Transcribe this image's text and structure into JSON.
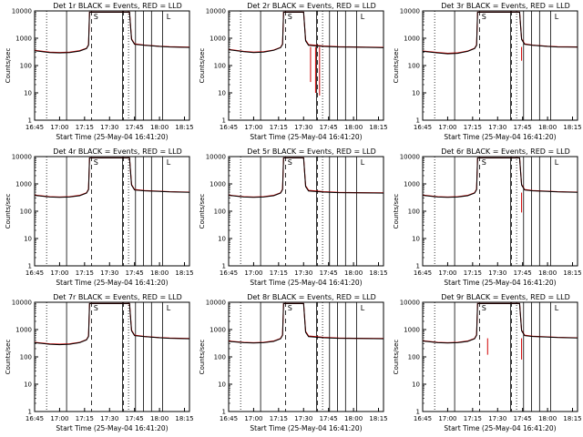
{
  "chart_data": [
    {
      "type": "line",
      "title": "Det 1r BLACK = Events, RED = LLD",
      "xlabel": "Start Time (25-May-04 16:41:20)",
      "ylabel": "Counts/sec",
      "yscale": "log",
      "ylim": [
        1,
        10000
      ],
      "xlim": [
        16.75,
        18.3
      ],
      "xtick_labels": [
        "16:45",
        "17:00",
        "17:15",
        "17:30",
        "17:45",
        "18:00",
        "18:15"
      ],
      "ytick_labels": [
        "1",
        "10",
        "100",
        "1000",
        "10000"
      ],
      "annotations": [
        "S",
        "L"
      ],
      "dips": [],
      "series": [
        {
          "color": "#000000",
          "x": [
            16.75,
            16.9,
            17.0,
            17.1,
            17.2,
            17.27,
            17.29,
            17.3,
            17.7,
            17.72,
            17.75,
            17.85,
            18.0,
            18.1,
            18.3
          ],
          "values": [
            350,
            300,
            290,
            300,
            340,
            420,
            560,
            9000,
            9000,
            900,
            600,
            550,
            500,
            480,
            460
          ]
        },
        {
          "color": "#d00000",
          "x": [
            16.75,
            16.9,
            17.0,
            17.1,
            17.2,
            17.27,
            17.29,
            17.3,
            17.7,
            17.72,
            17.75,
            17.85,
            18.0,
            18.1,
            18.3
          ],
          "values": [
            360,
            310,
            300,
            310,
            350,
            430,
            580,
            9000,
            9000,
            950,
            620,
            560,
            510,
            490,
            470
          ]
        }
      ]
    },
    {
      "type": "line",
      "title": "Det 2r BLACK = Events, RED = LLD",
      "xlabel": "Start Time (25-May-04 16:41:20)",
      "ylabel": "Counts/sec",
      "yscale": "log",
      "ylim": [
        1,
        10000
      ],
      "xlim": [
        16.75,
        18.3
      ],
      "xtick_labels": [
        "16:45",
        "17:00",
        "17:15",
        "17:30",
        "17:45",
        "18:00",
        "18:15"
      ],
      "ytick_labels": [
        "1",
        "10",
        "100",
        "1000",
        "10000"
      ],
      "annotations": [
        "S",
        "L"
      ],
      "dips": [
        [
          17.57,
          25
        ],
        [
          17.62,
          10
        ],
        [
          17.66,
          8
        ]
      ],
      "series": [
        {
          "color": "#000000",
          "x": [
            16.75,
            16.9,
            17.0,
            17.1,
            17.2,
            17.27,
            17.29,
            17.3,
            17.5,
            17.52,
            17.55,
            17.7,
            17.85,
            18.0,
            18.3
          ],
          "values": [
            380,
            320,
            300,
            310,
            360,
            450,
            600,
            9000,
            9000,
            800,
            550,
            500,
            480,
            470,
            450
          ]
        },
        {
          "color": "#d00000",
          "x": [
            16.75,
            16.9,
            17.0,
            17.1,
            17.2,
            17.27,
            17.29,
            17.3,
            17.5,
            17.52,
            17.55,
            17.7,
            17.85,
            18.0,
            18.3
          ],
          "values": [
            390,
            330,
            310,
            320,
            370,
            460,
            620,
            9000,
            9000,
            850,
            580,
            520,
            490,
            480,
            460
          ]
        }
      ]
    },
    {
      "type": "line",
      "title": "Det 3r BLACK = Events, RED = LLD",
      "xlabel": "Start Time (25-May-04 16:41:20)",
      "ylabel": "Counts/sec",
      "yscale": "log",
      "ylim": [
        1,
        10000
      ],
      "xlim": [
        16.75,
        18.3
      ],
      "xtick_labels": [
        "16:45",
        "17:00",
        "17:15",
        "17:30",
        "17:45",
        "18:00",
        "18:15"
      ],
      "ytick_labels": [
        "1",
        "10",
        "100",
        "1000",
        "10000"
      ],
      "annotations": [
        "S",
        "L"
      ],
      "dips": [
        [
          17.74,
          150
        ]
      ],
      "series": [
        {
          "color": "#000000",
          "x": [
            16.75,
            16.9,
            17.0,
            17.1,
            17.2,
            17.27,
            17.29,
            17.3,
            17.72,
            17.74,
            17.77,
            17.85,
            18.0,
            18.1,
            18.3
          ],
          "values": [
            330,
            290,
            270,
            280,
            330,
            420,
            550,
            9000,
            9000,
            900,
            600,
            550,
            500,
            480,
            470
          ]
        },
        {
          "color": "#d00000",
          "x": [
            16.75,
            16.9,
            17.0,
            17.1,
            17.2,
            17.27,
            17.29,
            17.3,
            17.72,
            17.74,
            17.77,
            17.85,
            18.0,
            18.1,
            18.3
          ],
          "values": [
            340,
            300,
            280,
            290,
            340,
            430,
            570,
            9000,
            9000,
            950,
            620,
            560,
            510,
            490,
            480
          ]
        }
      ]
    },
    {
      "type": "line",
      "title": "Det 4r BLACK = Events, RED = LLD",
      "xlabel": "Start Time (25-May-04 16:41:20)",
      "ylabel": "Counts/sec",
      "yscale": "log",
      "ylim": [
        1,
        10000
      ],
      "xlim": [
        16.75,
        18.3
      ],
      "xtick_labels": [
        "16:45",
        "17:00",
        "17:15",
        "17:30",
        "17:45",
        "18:00",
        "18:15"
      ],
      "ytick_labels": [
        "1",
        "10",
        "100",
        "1000",
        "10000"
      ],
      "annotations": [
        "S",
        "L"
      ],
      "dips": [],
      "series": [
        {
          "color": "#000000",
          "x": [
            16.75,
            16.9,
            17.0,
            17.1,
            17.2,
            17.27,
            17.29,
            17.3,
            17.7,
            17.72,
            17.75,
            17.85,
            18.0,
            18.1,
            18.3
          ],
          "values": [
            380,
            330,
            320,
            330,
            370,
            460,
            620,
            9000,
            9000,
            900,
            600,
            560,
            530,
            510,
            490
          ]
        },
        {
          "color": "#d00000",
          "x": [
            16.75,
            16.9,
            17.0,
            17.1,
            17.2,
            17.27,
            17.29,
            17.3,
            17.7,
            17.72,
            17.75,
            17.85,
            18.0,
            18.1,
            18.3
          ],
          "values": [
            390,
            340,
            330,
            340,
            380,
            470,
            640,
            9000,
            9000,
            950,
            620,
            570,
            540,
            520,
            500
          ]
        }
      ]
    },
    {
      "type": "line",
      "title": "Det 5r BLACK = Events, RED = LLD",
      "xlabel": "Start Time (25-May-04 16:41:20)",
      "ylabel": "Counts/sec",
      "yscale": "log",
      "ylim": [
        1,
        10000
      ],
      "xlim": [
        16.75,
        18.3
      ],
      "xtick_labels": [
        "16:45",
        "17:00",
        "17:15",
        "17:30",
        "17:45",
        "18:00",
        "18:15"
      ],
      "ytick_labels": [
        "1",
        "10",
        "100",
        "1000",
        "10000"
      ],
      "annotations": [
        "S",
        "L"
      ],
      "dips": [],
      "series": [
        {
          "color": "#000000",
          "x": [
            16.75,
            16.9,
            17.0,
            17.1,
            17.2,
            17.27,
            17.29,
            17.3,
            17.5,
            17.52,
            17.55,
            17.7,
            17.85,
            18.0,
            18.3
          ],
          "values": [
            380,
            330,
            320,
            330,
            370,
            460,
            620,
            9000,
            9000,
            800,
            550,
            500,
            480,
            470,
            460
          ]
        },
        {
          "color": "#d00000",
          "x": [
            16.75,
            16.9,
            17.0,
            17.1,
            17.2,
            17.27,
            17.29,
            17.3,
            17.5,
            17.52,
            17.55,
            17.7,
            17.85,
            18.0,
            18.3
          ],
          "values": [
            390,
            340,
            330,
            340,
            380,
            470,
            640,
            9000,
            9000,
            850,
            580,
            520,
            490,
            480,
            470
          ]
        }
      ]
    },
    {
      "type": "line",
      "title": "Det 6r BLACK = Events, RED = LLD",
      "xlabel": "Start Time (25-May-04 16:41:20)",
      "ylabel": "Counts/sec",
      "yscale": "log",
      "ylim": [
        1,
        10000
      ],
      "xlim": [
        16.75,
        18.3
      ],
      "xtick_labels": [
        "16:45",
        "17:00",
        "17:15",
        "17:30",
        "17:45",
        "18:00",
        "18:15"
      ],
      "ytick_labels": [
        "1",
        "10",
        "100",
        "1000",
        "10000"
      ],
      "annotations": [
        "S",
        "L"
      ],
      "dips": [
        [
          17.74,
          90
        ]
      ],
      "series": [
        {
          "color": "#000000",
          "x": [
            16.75,
            16.9,
            17.0,
            17.1,
            17.2,
            17.27,
            17.29,
            17.3,
            17.72,
            17.74,
            17.77,
            17.85,
            18.0,
            18.1,
            18.3
          ],
          "values": [
            380,
            330,
            320,
            330,
            370,
            460,
            620,
            9000,
            9000,
            900,
            600,
            560,
            530,
            510,
            490
          ]
        },
        {
          "color": "#d00000",
          "x": [
            16.75,
            16.9,
            17.0,
            17.1,
            17.2,
            17.27,
            17.29,
            17.3,
            17.72,
            17.74,
            17.77,
            17.85,
            18.0,
            18.1,
            18.3
          ],
          "values": [
            390,
            340,
            330,
            340,
            380,
            470,
            640,
            9000,
            9000,
            950,
            620,
            570,
            540,
            520,
            500
          ]
        }
      ]
    },
    {
      "type": "line",
      "title": "Det 7r BLACK = Events, RED = LLD",
      "xlabel": "Start Time (25-May-04 16:41:20)",
      "ylabel": "Counts/sec",
      "yscale": "log",
      "ylim": [
        1,
        10000
      ],
      "xlim": [
        16.75,
        18.3
      ],
      "xtick_labels": [
        "16:45",
        "17:00",
        "17:15",
        "17:30",
        "17:45",
        "18:00",
        "18:15"
      ],
      "ytick_labels": [
        "1",
        "10",
        "100",
        "1000",
        "10000"
      ],
      "annotations": [
        "S",
        "L"
      ],
      "dips": [],
      "series": [
        {
          "color": "#000000",
          "x": [
            16.75,
            16.9,
            17.0,
            17.1,
            17.2,
            17.27,
            17.29,
            17.3,
            17.7,
            17.72,
            17.75,
            17.85,
            18.0,
            18.1,
            18.3
          ],
          "values": [
            330,
            290,
            280,
            290,
            330,
            420,
            560,
            9000,
            9000,
            900,
            600,
            550,
            500,
            480,
            460
          ]
        },
        {
          "color": "#d00000",
          "x": [
            16.75,
            16.9,
            17.0,
            17.1,
            17.2,
            17.27,
            17.29,
            17.3,
            17.7,
            17.72,
            17.75,
            17.85,
            18.0,
            18.1,
            18.3
          ],
          "values": [
            340,
            300,
            290,
            300,
            340,
            430,
            580,
            9000,
            9000,
            950,
            620,
            560,
            510,
            490,
            470
          ]
        }
      ]
    },
    {
      "type": "line",
      "title": "Det 8r BLACK = Events, RED = LLD",
      "xlabel": "Start Time (25-May-04 16:41:20)",
      "ylabel": "Counts/sec",
      "yscale": "log",
      "ylim": [
        1,
        10000
      ],
      "xlim": [
        16.75,
        18.3
      ],
      "xtick_labels": [
        "16:45",
        "17:00",
        "17:15",
        "17:30",
        "17:45",
        "18:00",
        "18:15"
      ],
      "ytick_labels": [
        "1",
        "10",
        "100",
        "1000",
        "10000"
      ],
      "annotations": [
        "S",
        "L"
      ],
      "dips": [],
      "series": [
        {
          "color": "#000000",
          "x": [
            16.75,
            16.9,
            17.0,
            17.1,
            17.2,
            17.27,
            17.29,
            17.3,
            17.5,
            17.52,
            17.55,
            17.7,
            17.85,
            18.0,
            18.3
          ],
          "values": [
            370,
            330,
            320,
            330,
            370,
            460,
            620,
            9000,
            9000,
            800,
            550,
            500,
            480,
            470,
            460
          ]
        },
        {
          "color": "#d00000",
          "x": [
            16.75,
            16.9,
            17.0,
            17.1,
            17.2,
            17.27,
            17.29,
            17.3,
            17.5,
            17.52,
            17.55,
            17.7,
            17.85,
            18.0,
            18.3
          ],
          "values": [
            380,
            340,
            330,
            340,
            380,
            470,
            640,
            9000,
            9000,
            850,
            580,
            520,
            490,
            480,
            470
          ]
        }
      ]
    },
    {
      "type": "line",
      "title": "Det 9r BLACK = Events, RED = LLD",
      "xlabel": "Start Time (25-May-04 16:41:20)",
      "ylabel": "Counts/sec",
      "yscale": "log",
      "ylim": [
        1,
        10000
      ],
      "xlim": [
        16.75,
        18.3
      ],
      "xtick_labels": [
        "16:45",
        "17:00",
        "17:15",
        "17:30",
        "17:45",
        "18:00",
        "18:15"
      ],
      "ytick_labels": [
        "1",
        "10",
        "100",
        "1000",
        "10000"
      ],
      "annotations": [
        "S",
        "L"
      ],
      "dips": [
        [
          17.4,
          120
        ],
        [
          17.74,
          80
        ]
      ],
      "series": [
        {
          "color": "#000000",
          "x": [
            16.75,
            16.9,
            17.0,
            17.1,
            17.2,
            17.27,
            17.29,
            17.3,
            17.72,
            17.74,
            17.77,
            17.85,
            18.0,
            18.1,
            18.3
          ],
          "values": [
            380,
            330,
            320,
            330,
            370,
            460,
            620,
            9000,
            9000,
            900,
            600,
            560,
            530,
            510,
            490
          ]
        },
        {
          "color": "#d00000",
          "x": [
            16.75,
            16.9,
            17.0,
            17.1,
            17.2,
            17.27,
            17.29,
            17.3,
            17.72,
            17.74,
            17.77,
            17.85,
            18.0,
            18.1,
            18.3
          ],
          "values": [
            390,
            340,
            330,
            340,
            380,
            470,
            640,
            9000,
            9000,
            950,
            620,
            570,
            540,
            520,
            500
          ]
        }
      ]
    }
  ]
}
